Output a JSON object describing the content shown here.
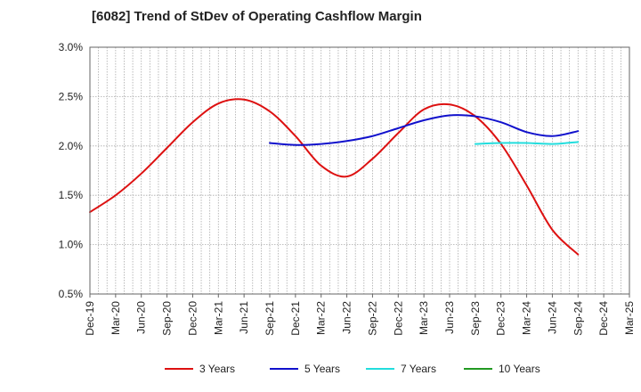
{
  "chart_data": {
    "type": "line",
    "title": "[6082]  Trend of StDev of Operating Cashflow Margin",
    "xlabel": "",
    "ylabel": "",
    "ylim": [
      0.5,
      3.0
    ],
    "y_ticks": [
      "0.5%",
      "1.0%",
      "1.5%",
      "2.0%",
      "2.5%",
      "3.0%"
    ],
    "y_tick_values": [
      0.5,
      1.0,
      1.5,
      2.0,
      2.5,
      3.0
    ],
    "x_ticks": [
      "Dec-19",
      "Mar-20",
      "Jun-20",
      "Sep-20",
      "Dec-20",
      "Mar-21",
      "Jun-21",
      "Sep-21",
      "Dec-21",
      "Mar-22",
      "Jun-22",
      "Sep-22",
      "Dec-22",
      "Mar-23",
      "Jun-23",
      "Sep-23",
      "Dec-23",
      "Mar-24",
      "Jun-24",
      "Sep-24",
      "Dec-24",
      "Mar-25"
    ],
    "grid": true,
    "legend_position": "bottom",
    "series": [
      {
        "name": "3 Years",
        "color": "#dd1111",
        "points": [
          [
            "Dec-19",
            1.33
          ],
          [
            "Mar-20",
            1.5
          ],
          [
            "Jun-20",
            1.72
          ],
          [
            "Sep-20",
            1.98
          ],
          [
            "Dec-20",
            2.24
          ],
          [
            "Mar-21",
            2.43
          ],
          [
            "Jun-21",
            2.47
          ],
          [
            "Sep-21",
            2.35
          ],
          [
            "Dec-21",
            2.1
          ],
          [
            "Mar-22",
            1.8
          ],
          [
            "Jun-22",
            1.69
          ],
          [
            "Sep-22",
            1.87
          ],
          [
            "Dec-22",
            2.13
          ],
          [
            "Mar-23",
            2.37
          ],
          [
            "Jun-23",
            2.42
          ],
          [
            "Sep-23",
            2.3
          ],
          [
            "Dec-23",
            2.02
          ],
          [
            "Mar-24",
            1.6
          ],
          [
            "Jun-24",
            1.15
          ],
          [
            "Sep-24",
            0.9
          ]
        ]
      },
      {
        "name": "5 Years",
        "color": "#1111cc",
        "points": [
          [
            "Sep-21",
            2.03
          ],
          [
            "Dec-21",
            2.01
          ],
          [
            "Mar-22",
            2.02
          ],
          [
            "Jun-22",
            2.05
          ],
          [
            "Sep-22",
            2.1
          ],
          [
            "Dec-22",
            2.18
          ],
          [
            "Mar-23",
            2.26
          ],
          [
            "Jun-23",
            2.31
          ],
          [
            "Sep-23",
            2.3
          ],
          [
            "Dec-23",
            2.24
          ],
          [
            "Mar-24",
            2.14
          ],
          [
            "Jun-24",
            2.1
          ],
          [
            "Sep-24",
            2.15
          ]
        ]
      },
      {
        "name": "7 Years",
        "color": "#22dddd",
        "points": [
          [
            "Sep-23",
            2.02
          ],
          [
            "Dec-23",
            2.03
          ],
          [
            "Mar-24",
            2.03
          ],
          [
            "Jun-24",
            2.02
          ],
          [
            "Sep-24",
            2.04
          ]
        ]
      },
      {
        "name": "10 Years",
        "color": "#229922",
        "points": []
      }
    ]
  }
}
